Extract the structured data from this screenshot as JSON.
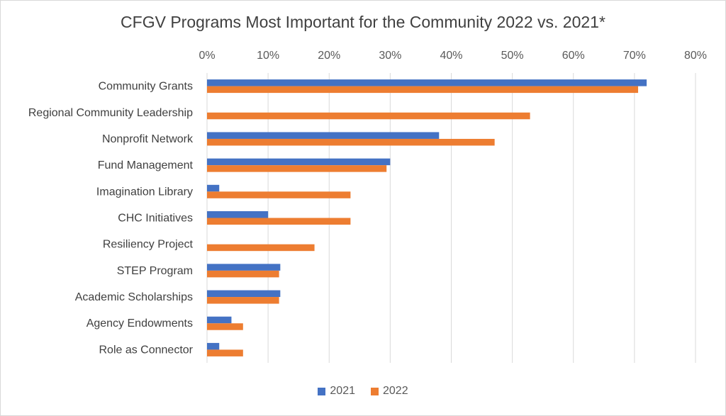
{
  "chart_data": {
    "type": "bar",
    "orientation": "horizontal",
    "title": "CFGV Programs Most Important for the Community 2022 vs. 2021*",
    "categories": [
      "Community Grants",
      "Regional Community Leadership",
      "Nonprofit Network",
      "Fund Management",
      "Imagination Library",
      "CHC Initiatives",
      "Resiliency Project",
      "STEP Program",
      "Academic Scholarships",
      "Agency Endowments",
      "Role as Connector"
    ],
    "series": [
      {
        "name": "2021",
        "color": "#4472c4",
        "values": [
          72,
          null,
          38,
          30,
          2,
          10,
          null,
          12,
          12,
          4,
          2
        ]
      },
      {
        "name": "2022",
        "color": "#ed7d31",
        "values": [
          70.6,
          52.9,
          47.1,
          29.4,
          23.5,
          23.5,
          17.6,
          11.8,
          11.8,
          5.9,
          5.9
        ]
      }
    ],
    "xlim": [
      0,
      80
    ],
    "xticks": [
      "0%",
      "10%",
      "20%",
      "30%",
      "40%",
      "50%",
      "60%",
      "70%",
      "80%"
    ],
    "axis_position": "top",
    "grid": true,
    "legend_position": "bottom"
  }
}
